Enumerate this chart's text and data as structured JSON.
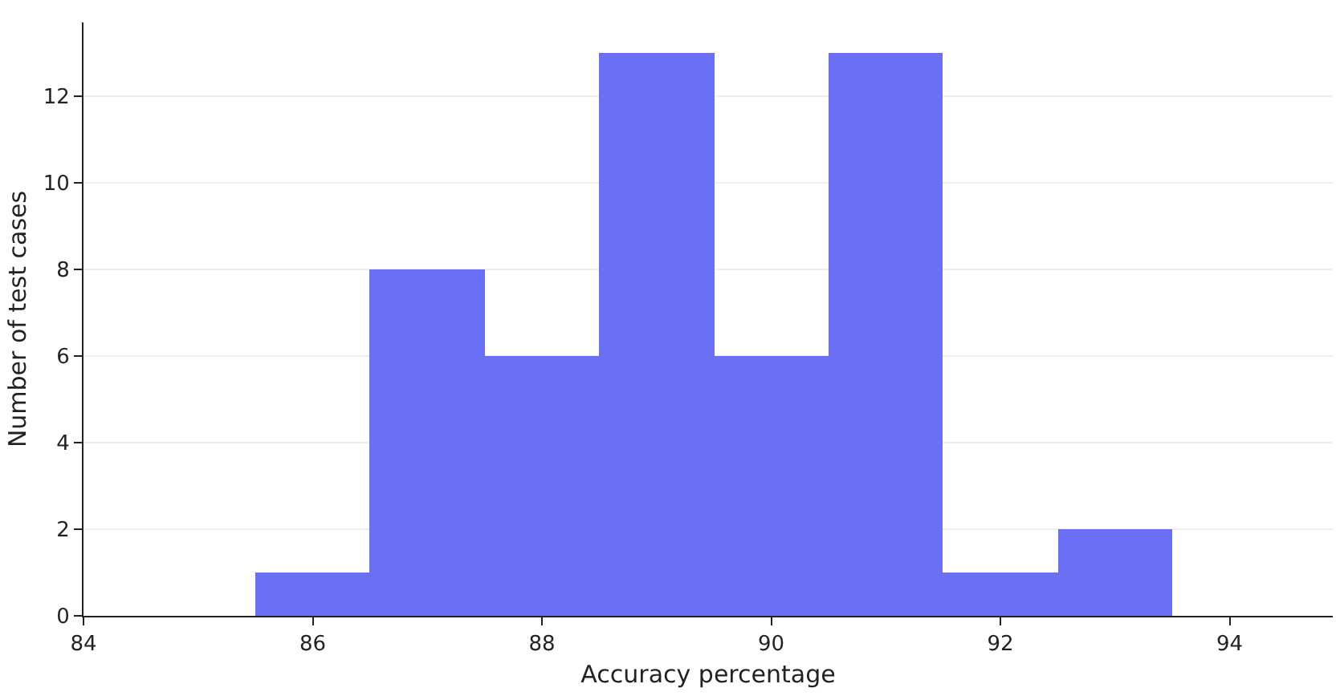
{
  "chart_data": {
    "type": "histogram",
    "xlabel": "Accuracy percentage",
    "ylabel": "Number of test cases",
    "bins": [
      85.5,
      86.5,
      87.5,
      88.5,
      89.5,
      90.5,
      91.5,
      92.5,
      93.5
    ],
    "values": [
      1,
      8,
      6,
      13,
      6,
      13,
      1,
      2
    ],
    "color": "#6a70f5",
    "xlim": [
      84,
      94.9
    ],
    "xticks": [
      84,
      86,
      88,
      90,
      92,
      94
    ],
    "ylim": [
      0,
      13.7
    ],
    "yticks": [
      0,
      2,
      4,
      6,
      8,
      10,
      12
    ],
    "grid": "y"
  }
}
